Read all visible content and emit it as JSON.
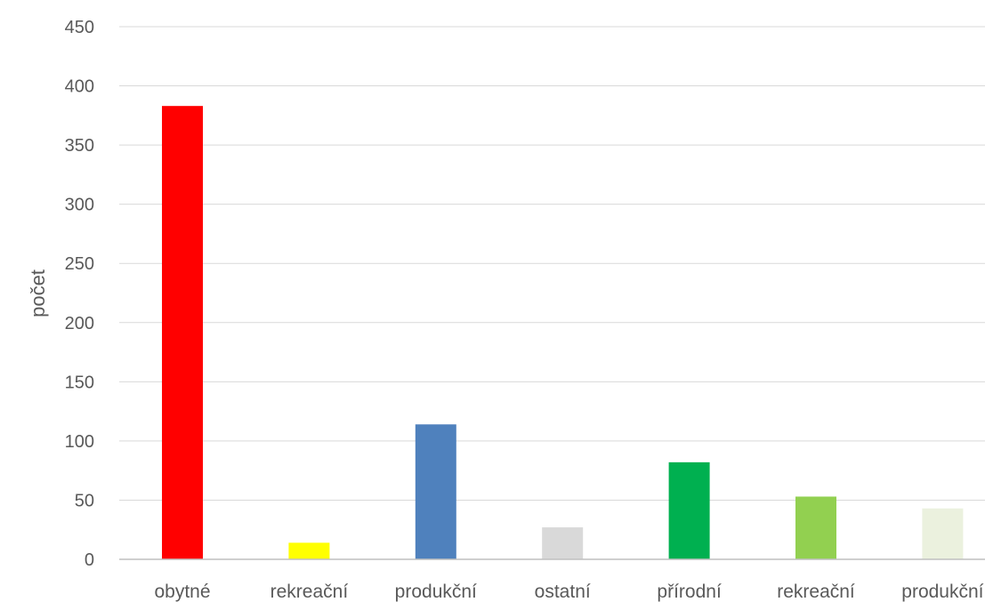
{
  "chart_data": {
    "type": "bar",
    "title": "",
    "xlabel": "",
    "ylabel": "počet",
    "ylim": [
      0,
      450
    ],
    "yticks": [
      "0",
      "50",
      "100",
      "150",
      "200",
      "250",
      "300",
      "350",
      "400",
      "450"
    ],
    "grid": true,
    "legend": "none",
    "categories": [
      "obytné",
      "rekreační",
      "produkční",
      "ostatní",
      "přírodní",
      "rekreační",
      "produkční"
    ],
    "values": [
      383,
      14,
      114,
      27,
      82,
      53,
      43
    ],
    "colors": [
      "#ff0000",
      "#ffff00",
      "#4f81bd",
      "#d9d9d9",
      "#00b050",
      "#92d050",
      "#ebf1de"
    ],
    "gridline_color": "#d9d9d9",
    "axis_color": "#bfbfbf"
  }
}
